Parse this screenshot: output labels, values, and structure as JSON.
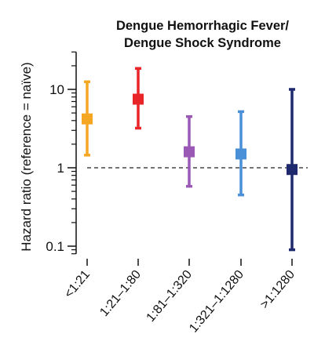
{
  "chart_data": {
    "type": "errorbar",
    "title_lines": [
      "Dengue Hemorrhagic Fever/",
      "Dengue Shock Syndrome"
    ],
    "ylabel": "Hazard ratio (reference = naïve)",
    "xlabel": "",
    "y_scale": "log",
    "ylim": [
      0.08,
      30
    ],
    "y_major_ticks": [
      0.1,
      1,
      10
    ],
    "y_major_tick_labels": [
      "0.1",
      "1",
      "10"
    ],
    "reference_line": 1,
    "grid": false,
    "categories": [
      "<1:21",
      "1:21–1:80",
      "1:81–1:320",
      "1:321–1:1280",
      ">1:1280"
    ],
    "points": [
      {
        "category": "<1:21",
        "estimate": 4.2,
        "lower": 1.45,
        "upper": 12.5,
        "color": "#f5a623"
      },
      {
        "category": "1:21–1:80",
        "estimate": 7.5,
        "lower": 3.2,
        "upper": 18.5,
        "color": "#e8262a"
      },
      {
        "category": "1:81–1:320",
        "estimate": 1.6,
        "lower": 0.58,
        "upper": 4.5,
        "color": "#9b59b6"
      },
      {
        "category": "1:321–1:1280",
        "estimate": 1.5,
        "lower": 0.45,
        "upper": 5.2,
        "color": "#4a90d9"
      },
      {
        "category": ">1:1280",
        "estimate": 0.95,
        "lower": 0.09,
        "upper": 10,
        "color": "#1f2a6e"
      }
    ]
  }
}
